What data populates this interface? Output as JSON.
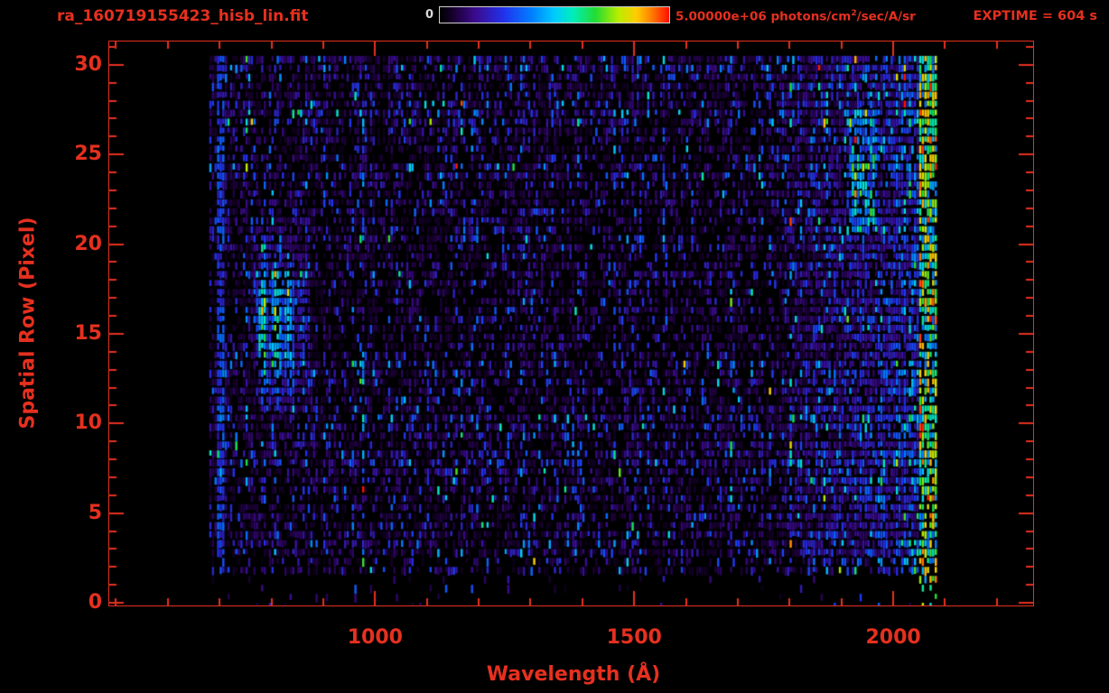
{
  "header": {
    "title": "ra_160719155423_hisb_lin.fit",
    "colorbar": {
      "min_label": "0",
      "max_label_prefix": "5.00000e+06 photons/cm",
      "max_label_sup": "2",
      "max_label_suffix": "/sec/A/sr"
    },
    "exptime": "EXPTIME = 604 s"
  },
  "colors": {
    "background": "#000000",
    "accent_red": "#e6301f",
    "colorbar_min_label": "#d9d9d9",
    "colorbar_border": "#cfcfcf"
  },
  "chart_data": {
    "type": "heatmap",
    "title": "ra_160719155423_hisb_lin.fit",
    "xlabel": "Wavelength (Å)",
    "ylabel": "Spatial Row (Pixel)",
    "xlim": [
      487,
      2270
    ],
    "ylim": [
      -0.15,
      31.3
    ],
    "xticks": [
      1000,
      1500,
      2000
    ],
    "xtick_minor_step": 100,
    "yticks": [
      0,
      5,
      10,
      15,
      20,
      25,
      30
    ],
    "ytick_minor_step": 1,
    "colorbar_range": [
      0,
      5000000
    ],
    "colorbar_units": "photons/cm^2/sec/A/sr",
    "exptime_seconds": 604,
    "grid": false,
    "legend": "none",
    "colormap_stops": [
      [
        0.0,
        "#000000"
      ],
      [
        0.06,
        "#1a0033"
      ],
      [
        0.15,
        "#3b0a8c"
      ],
      [
        0.28,
        "#2233ee"
      ],
      [
        0.4,
        "#0080ff"
      ],
      [
        0.5,
        "#00ccff"
      ],
      [
        0.58,
        "#00eebb"
      ],
      [
        0.68,
        "#22dd33"
      ],
      [
        0.78,
        "#bbee00"
      ],
      [
        0.86,
        "#ffcc00"
      ],
      [
        0.93,
        "#ff7700"
      ],
      [
        1.0,
        "#ff1100"
      ]
    ],
    "data_extent": {
      "wavelength": [
        680,
        2085
      ],
      "rows": [
        0,
        30
      ]
    },
    "features": [
      {
        "name": "background-noise",
        "description": "faint purple/blue speckle over whole detector, rows 2-30",
        "base_scale": 0.085,
        "blue_fleck_prob": 0.06
      },
      {
        "name": "bright-emission-arc",
        "description": "bright cyan/green curved emission stripes",
        "wavelength": [
          755,
          890
        ],
        "rows": [
          11,
          21
        ],
        "center_row": 15.5,
        "base_wavelength": 780,
        "curvature": 0.3,
        "stripe_offsets": [
          0,
          27,
          52,
          80
        ],
        "stripe_weights": [
          1.0,
          0.95,
          0.8,
          0.35
        ],
        "amplitude": 0.58
      },
      {
        "name": "left-edge-line",
        "description": "faint blue vertical line at left edge of data",
        "wavelength": [
          695,
          708
        ],
        "level": 0.25
      },
      {
        "name": "right-side-brightening",
        "description": "blue/green speckle ramp toward long wavelengths",
        "wavelength_start": 1750,
        "max_boost": 0.38
      },
      {
        "name": "cyan-blob",
        "description": "bright cyan patch upper right",
        "wavelength": [
          1915,
          1965
        ],
        "rows": [
          21,
          27
        ],
        "boost": 0.2
      },
      {
        "name": "right-edge-hot-columns",
        "description": "green/yellow/orange saturated columns at extreme right",
        "wavelength_start": 2048,
        "level": [
          0.35,
          0.9
        ],
        "hot_fleck_prob": 0.15
      }
    ],
    "render_params": {
      "seed": 20160719,
      "bin_angstrom": 5,
      "coverage": 0.9
    }
  }
}
